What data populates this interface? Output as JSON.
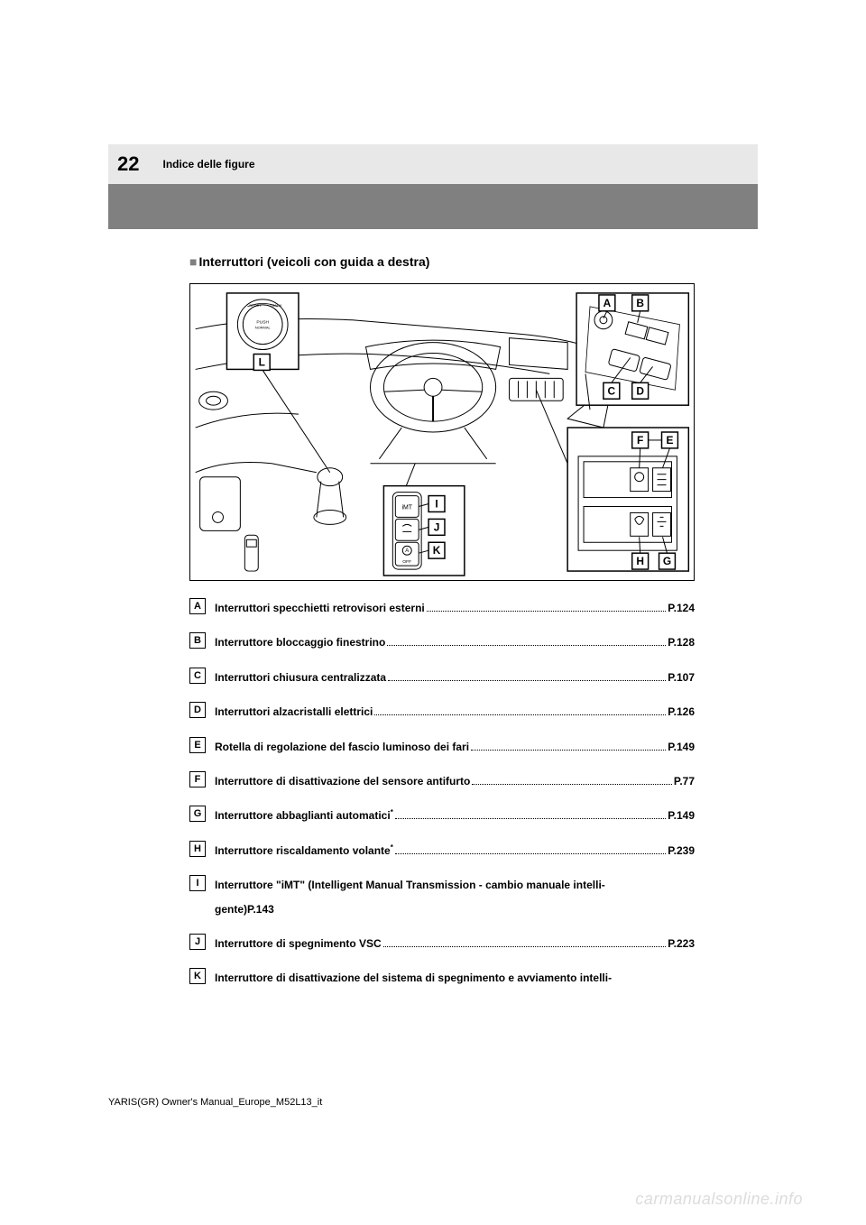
{
  "header": {
    "pageNumber": "22",
    "sectionTitle": "Indice delle figure"
  },
  "subsection": {
    "marker": "■",
    "title": "Interruttori (veicoli con guida a destra)"
  },
  "diagram": {
    "outerBorderColor": "#000000",
    "lineColor": "#000000",
    "lineWidth": 1.2,
    "labelFontSize": 11,
    "pushButtonText1": "PUSH",
    "pushButtonText2": "NORMAL",
    "imtText": "iMT",
    "offText": "OFF",
    "labels": [
      "A",
      "B",
      "C",
      "D",
      "E",
      "F",
      "G",
      "H",
      "I",
      "J",
      "K",
      "L"
    ]
  },
  "items": [
    {
      "letter": "A",
      "label": "Interruttori specchietti retrovisori esterni",
      "page": "P.124",
      "dots": true
    },
    {
      "letter": "B",
      "label": "Interruttore bloccaggio finestrino",
      "page": "P.128",
      "dots": true
    },
    {
      "letter": "C",
      "label": "Interruttori chiusura centralizzata ",
      "page": "P.107",
      "dots": true
    },
    {
      "letter": "D",
      "label": "Interruttori alzacristalli elettrici",
      "page": "P.126",
      "dots": true
    },
    {
      "letter": "E",
      "label": "Rotella di regolazione del fascio luminoso dei fari",
      "page": "P.149",
      "dots": true
    },
    {
      "letter": "F",
      "label": "Interruttore di disattivazione del sensore antifurto ",
      "page": "P.77",
      "dots": true
    },
    {
      "letter": "G",
      "label": "Interruttore abbaglianti automatici",
      "sup": "*",
      "page": "P.149",
      "dots": true
    },
    {
      "letter": "H",
      "label": "Interruttore riscaldamento volante",
      "sup": "*",
      "page": "P.239",
      "dots": true
    },
    {
      "letter": "I",
      "label": "Interruttore \"iMT\" (Intelligent Manual Transmission - cambio manuale intelli-",
      "continuation": "gente)P.143",
      "dots": false
    },
    {
      "letter": "J",
      "label": "Interruttore di spegnimento VSC ",
      "page": "P.223",
      "dots": true
    },
    {
      "letter": "K",
      "label": "Interruttore di disattivazione del sistema di spegnimento e avviamento intelli-",
      "dots": false
    }
  ],
  "footer": "YARIS(GR) Owner's Manual_Europe_M52L13_it",
  "watermark": "carmanualsonline.info",
  "colors": {
    "headerBg": "#e8e8e8",
    "darkBar": "#808080",
    "text": "#000000",
    "watermark": "#dcdcdc"
  }
}
